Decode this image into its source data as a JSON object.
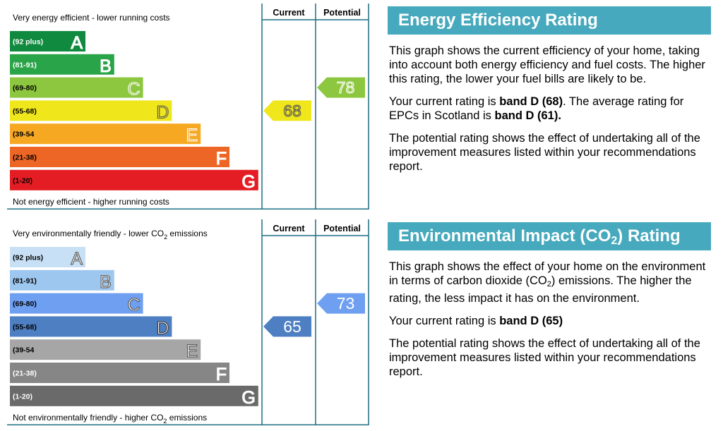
{
  "energy": {
    "title": "Energy Efficiency Rating",
    "para1": "This graph shows the current efficiency of your home, taking into account both energy efficiency and fuel costs. The higher this rating, the lower your fuel bills are likely to be.",
    "para2_prefix": "Your current rating is ",
    "para2_bold1": "band D (68)",
    "para2_middle": ". The average rating for EPCs in Scotland is ",
    "para2_bold2": "band D (61).",
    "para3": "The potential rating shows the effect of undertaking all of the improvement measures listed within your recommendations report."
  },
  "environment": {
    "title_pre": "Environmental Impact (CO",
    "title_sub": "2",
    "title_post": ") Rating",
    "para1_pre": "This graph shows the effect of your home on the environment in terms of carbon dioxide (CO",
    "para1_sub": "2",
    "para1_post": ") emissions. The higher the rating, the less impact it has on the environment.",
    "para2_prefix": "Your current rating is ",
    "para2_bold": "band D (65)",
    "para3": "The potential rating shows the effect of undertaking all of the improvement measures listed within your recommendations report."
  },
  "chart_data": [
    {
      "type": "bar",
      "top_label": "Very energy efficient - lower running costs",
      "bottom_label": "Not energy efficient - higher running costs",
      "col_current": "Current",
      "col_potential": "Potential",
      "bands": [
        {
          "letter": "A",
          "range": "(92 plus)",
          "color": "#108a3e",
          "text_color": "#ffffff",
          "letter_fill": "#ffffff",
          "letter_stroke": "#ffffff"
        },
        {
          "letter": "B",
          "range": "(81-91)",
          "color": "#2aa448",
          "text_color": "#ffffff",
          "letter_fill": "#ffffff",
          "letter_stroke": "#ffffff"
        },
        {
          "letter": "C",
          "range": "(69-80)",
          "color": "#8dc63f",
          "text_color": "#000000",
          "letter_fill": "#8dc63f",
          "letter_stroke": "#ffffff"
        },
        {
          "letter": "D",
          "range": "(55-68)",
          "color": "#f0e61c",
          "text_color": "#000000",
          "letter_fill": "#f0e61c",
          "letter_stroke": "#555555"
        },
        {
          "letter": "E",
          "range": "(39-54",
          "color": "#f7a823",
          "text_color": "#000000",
          "letter_fill": "#f7a823",
          "letter_stroke": "#ffffff"
        },
        {
          "letter": "F",
          "range": "(21-38)",
          "color": "#ed6625",
          "text_color": "#000000",
          "letter_fill": "#ffffff",
          "letter_stroke": "#ffffff"
        },
        {
          "letter": "G",
          "range": "(1-20)",
          "color": "#e31d23",
          "text_color": "#000000",
          "letter_fill": "#ffffff",
          "letter_stroke": "#ffffff"
        }
      ],
      "current": {
        "value": 68,
        "label": "68",
        "band": "D",
        "color": "#f0e61c",
        "text_color": "#f0e61c",
        "text_stroke": "#555555"
      },
      "potential": {
        "value": 78,
        "label": "78",
        "band": "C",
        "color": "#8dc63f",
        "text_color": "#8dc63f",
        "text_stroke": "#ffffff"
      }
    },
    {
      "type": "bar",
      "top_label": "Very environmentally friendly - lower CO",
      "top_label_sub": "2",
      "top_label_post": " emissions",
      "bottom_label": "Not environmentally friendly - higher CO",
      "bottom_label_sub": "2",
      "bottom_label_post": " emissions",
      "col_current": "Current",
      "col_potential": "Potential",
      "bands": [
        {
          "letter": "A",
          "range": "(92 plus)",
          "color": "#c8e0f5",
          "text_color": "#000000",
          "letter_fill": "#ffffff",
          "letter_stroke": "#555555"
        },
        {
          "letter": "B",
          "range": "(81-91)",
          "color": "#9ec7ef",
          "text_color": "#000000",
          "letter_fill": "#ffffff",
          "letter_stroke": "#555555"
        },
        {
          "letter": "C",
          "range": "(69-80)",
          "color": "#6e9ff0",
          "text_color": "#000000",
          "letter_fill": "#ffffff",
          "letter_stroke": "#555555"
        },
        {
          "letter": "D",
          "range": "(55-68)",
          "color": "#4f7fc3",
          "text_color": "#000000",
          "letter_fill": "#ffffff",
          "letter_stroke": "#333333"
        },
        {
          "letter": "E",
          "range": "(39-54",
          "color": "#a6a6a6",
          "text_color": "#000000",
          "letter_fill": "#ffffff",
          "letter_stroke": "#555555"
        },
        {
          "letter": "F",
          "range": "(21-38)",
          "color": "#868686",
          "text_color": "#ffffff",
          "letter_fill": "#ffffff",
          "letter_stroke": "#ffffff"
        },
        {
          "letter": "G",
          "range": "(1-20)",
          "color": "#6a6a6a",
          "text_color": "#ffffff",
          "letter_fill": "#ffffff",
          "letter_stroke": "#ffffff"
        }
      ],
      "current": {
        "value": 65,
        "label": "65",
        "band": "D",
        "color": "#4f7fc3",
        "text_color": "#ffffff",
        "text_stroke": "none"
      },
      "potential": {
        "value": 73,
        "label": "73",
        "band": "C",
        "color": "#6e9ff0",
        "text_color": "#ffffff",
        "text_stroke": "none"
      }
    }
  ]
}
